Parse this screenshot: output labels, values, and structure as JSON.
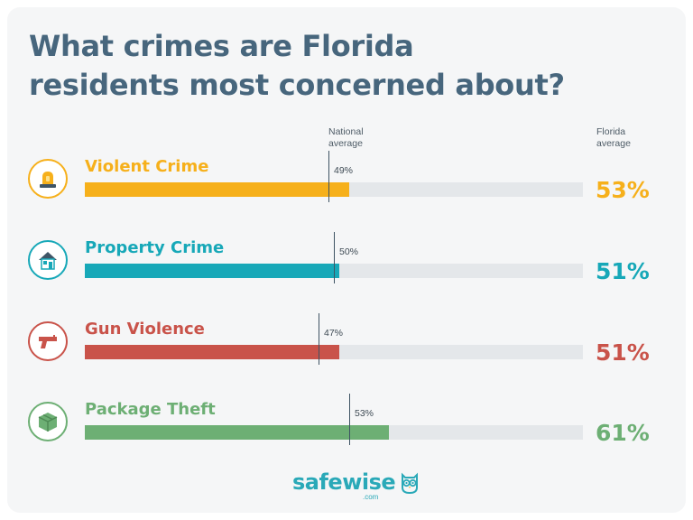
{
  "title_line1": "What crimes are Florida",
  "title_line2": "residents most concerned about?",
  "national_note": [
    "National",
    "average"
  ],
  "florida_note": [
    "Florida",
    "average"
  ],
  "logo": {
    "text": "safewise",
    "sub": ".com"
  },
  "colors": {
    "title": "#47667d",
    "track": "#e4e7ea",
    "violent": "#f6b01b",
    "property": "#17a8b8",
    "gun": "#c9534a",
    "package": "#6daf74",
    "logo": "#2aa9b8"
  },
  "chart_data": {
    "type": "bar",
    "orientation": "horizontal",
    "title": "What crimes are Florida residents most concerned about?",
    "categories": [
      "Violent Crime",
      "Property Crime",
      "Gun Violence",
      "Package Theft"
    ],
    "series": [
      {
        "name": "Florida average",
        "values": [
          53,
          51,
          51,
          61
        ],
        "labels": [
          "53%",
          "51%",
          "51%",
          "61%"
        ]
      },
      {
        "name": "National average",
        "values": [
          49,
          50,
          47,
          53
        ],
        "labels": [
          "49%",
          "50%",
          "47%",
          "53%"
        ]
      }
    ],
    "xlim": [
      0,
      100
    ],
    "unit": "%",
    "icons": [
      "siren-icon",
      "house-icon",
      "gun-icon",
      "package-icon"
    ],
    "grid": false,
    "legend": "none"
  }
}
